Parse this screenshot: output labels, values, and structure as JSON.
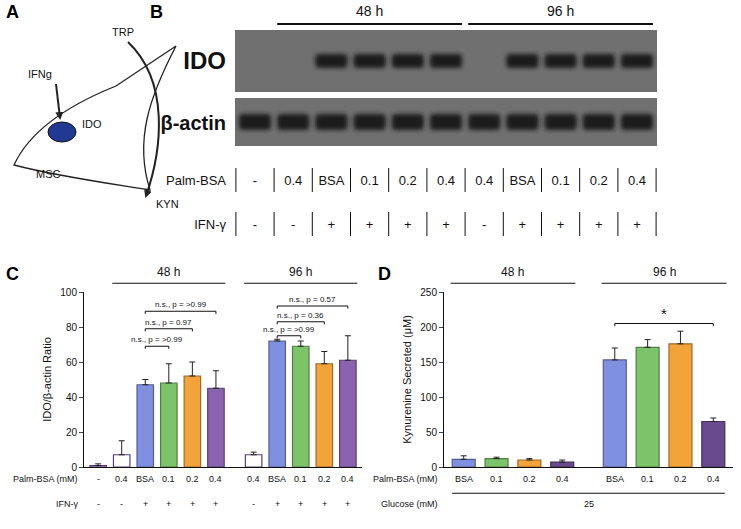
{
  "panel_labels": [
    "A",
    "B",
    "C",
    "D"
  ],
  "diagram": {
    "cell": "MSC",
    "nucleus": "IDO",
    "input": "IFNg",
    "substrate": "TRP",
    "product": "KYN"
  },
  "blot": {
    "groups": [
      {
        "label": "48 h",
        "first": 1,
        "last": 5
      },
      {
        "label": "96 h",
        "first": 6,
        "last": 10
      }
    ],
    "rows": [
      {
        "label": "IDO",
        "bands": [
          false,
          false,
          true,
          true,
          true,
          true,
          false,
          true,
          true,
          true,
          true
        ]
      },
      {
        "label": "β-actin",
        "bands": [
          true,
          true,
          true,
          true,
          true,
          true,
          true,
          true,
          true,
          true,
          true
        ]
      }
    ],
    "conditions": [
      {
        "label": "Palm-BSA",
        "values": [
          "-",
          "0.4",
          "BSA",
          "0.1",
          "0.2",
          "0.4",
          "0.4",
          "BSA",
          "0.1",
          "0.2",
          "0.4"
        ]
      },
      {
        "label": "IFN-γ",
        "values": [
          "-",
          "-",
          "+",
          "+",
          "+",
          "+",
          "-",
          "+",
          "+",
          "+",
          "+"
        ]
      }
    ]
  },
  "chart_data": [
    {
      "type": "bar",
      "ylabel": "IDO/β-actin Ratio",
      "category_label": "Palm-BSA (mM)",
      "categories": [
        "-",
        "0.4",
        "BSA",
        "0.1",
        "0.2",
        "0.4",
        "0.4",
        "BSA",
        "0.1",
        "0.2",
        "0.4"
      ],
      "values": [
        0.8,
        7,
        47,
        48,
        52,
        45,
        7,
        72,
        69,
        59,
        61
      ],
      "errors": [
        1,
        8,
        3,
        11,
        8,
        10,
        1.5,
        1,
        3,
        7,
        14
      ],
      "colors": [
        "#ffffff",
        "#ffffff",
        "#8090e0",
        "#7cc36a",
        "#f2a33a",
        "#8a62b0",
        "#ffffff",
        "#8090e0",
        "#7cc36a",
        "#f2a33a",
        "#8a62b0"
      ],
      "rows": [
        {
          "label": "IFN-γ",
          "values": [
            "-",
            "-",
            "+",
            "+",
            "+",
            "+",
            "-",
            "+",
            "+",
            "+",
            "+"
          ]
        }
      ],
      "groups": [
        {
          "label": "48 h",
          "first": 1,
          "last": 5
        },
        {
          "label": "96 h",
          "first": 6,
          "last": 10
        }
      ],
      "comparisons": [
        {
          "from": 2,
          "to": 5,
          "y": 89,
          "label": "n.s., p = >0.99"
        },
        {
          "from": 2,
          "to": 4,
          "y": 79,
          "label": "n.s., p = 0.97"
        },
        {
          "from": 2,
          "to": 3,
          "y": 69,
          "label": "n.s., p = >0.99"
        },
        {
          "from": 7,
          "to": 10,
          "y": 92,
          "label": "n.s., p = 0.57"
        },
        {
          "from": 7,
          "to": 9,
          "y": 83,
          "label": "n.s., p = 0.36"
        },
        {
          "from": 7,
          "to": 8,
          "y": 75,
          "label": "n.s., p = >0.99"
        }
      ],
      "ylim": [
        0,
        100
      ],
      "yticks": [
        0,
        20,
        40,
        60,
        80,
        100
      ],
      "grid": false,
      "tick_labels": "y"
    },
    {
      "type": "bar",
      "ylabel": "Kynurenine Secreted (μM)",
      "category_label": "Palm-BSA (mM)",
      "categories": [
        "BSA",
        "0.1",
        "0.2",
        "0.4",
        "BSA",
        "0.1",
        "0.2",
        "0.4"
      ],
      "values": [
        11,
        12,
        10,
        7,
        153,
        171,
        176,
        65
      ],
      "errors": [
        5,
        2,
        2,
        3,
        17,
        11,
        18,
        5
      ],
      "colors": [
        "#8090e0",
        "#7cc36a",
        "#f2a33a",
        "#6a4a8f",
        "#8090e0",
        "#7cc36a",
        "#f2a33a",
        "#6a4a8f"
      ],
      "rows": [
        {
          "label": "Glucose (mM)",
          "value": 25
        }
      ],
      "groups": [
        {
          "label": "48 h",
          "first": 0,
          "last": 3
        },
        {
          "label": "96 h",
          "first": 4,
          "last": 7
        }
      ],
      "comparisons": [
        {
          "from": 4,
          "to": 7,
          "y": 205,
          "label": "*"
        }
      ],
      "ylim": [
        0,
        250
      ],
      "yticks": [
        0,
        50,
        100,
        150,
        200,
        250
      ],
      "grid": false,
      "tick_labels": "y"
    }
  ]
}
